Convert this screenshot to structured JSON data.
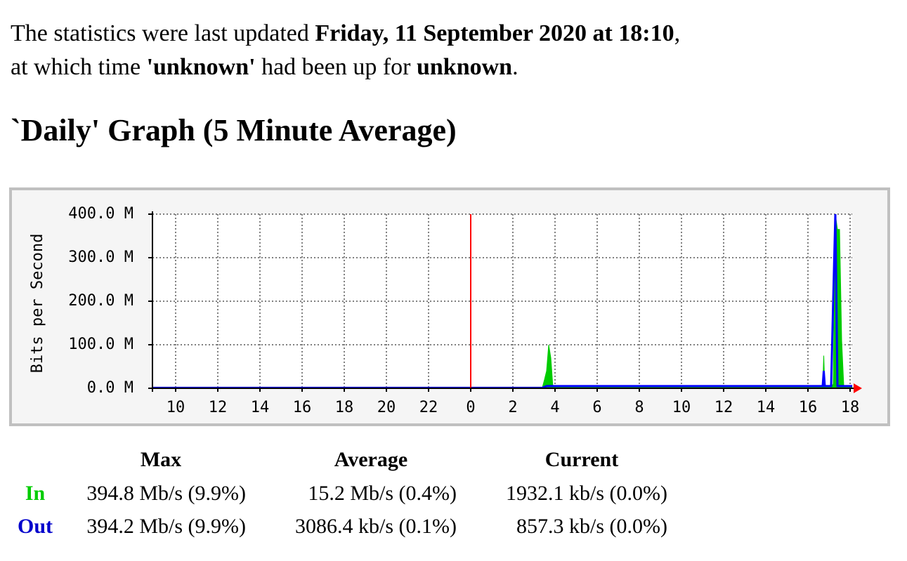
{
  "status": {
    "prefix": "The statistics were last updated",
    "updated": "Friday, 11 September 2020 at 18:10",
    "updated_suffix": ",",
    "host_prefix": "at which time",
    "host": "'unknown'",
    "uptime_prefix": "had been up for",
    "uptime": "unknown",
    "uptime_suffix": "."
  },
  "heading": "`Daily' Graph (5 Minute Average)",
  "chart_data": {
    "type": "line",
    "y_label": "Bits per Second",
    "x": [
      8.9,
      27.4,
      27.5,
      27.6,
      27.7,
      27.8,
      27.9,
      28.0,
      40.7,
      40.75,
      40.8,
      41.1,
      41.2,
      41.3,
      41.4,
      41.5,
      41.6,
      41.7,
      41.8,
      42.1
    ],
    "series": [
      {
        "name": "In",
        "color": "#00cc00",
        "fill": true,
        "values": [
          2,
          2,
          20,
          40,
          100,
          70,
          2,
          2,
          2,
          75,
          2,
          2,
          10,
          400,
          365,
          365,
          110,
          5,
          2,
          2
        ]
      },
      {
        "name": "Out",
        "color": "#0000ff",
        "fill": false,
        "values": [
          1,
          1,
          3,
          5,
          5,
          5,
          5,
          5,
          5,
          40,
          5,
          5,
          205,
          400,
          5,
          5,
          5,
          5,
          5,
          5
        ]
      }
    ],
    "xlim": [
      8.9,
      42.1
    ],
    "xticks": [
      10,
      12,
      14,
      16,
      18,
      20,
      22,
      {
        "value": 24,
        "label": "0"
      },
      {
        "value": 26,
        "label": "2"
      },
      {
        "value": 28,
        "label": "4"
      },
      {
        "value": 30,
        "label": "6"
      },
      {
        "value": 32,
        "label": "8"
      },
      {
        "value": 34,
        "label": "10"
      },
      {
        "value": 36,
        "label": "12"
      },
      {
        "value": 38,
        "label": "14"
      },
      {
        "value": 40,
        "label": "16"
      },
      {
        "value": 42,
        "label": "18"
      }
    ],
    "ylim": [
      0,
      400
    ],
    "yticks": [
      {
        "value": 0,
        "label": "0.0 M"
      },
      {
        "value": 100,
        "label": "100.0 M"
      },
      {
        "value": 200,
        "label": "200.0 M"
      },
      {
        "value": 300,
        "label": "300.0 M"
      },
      {
        "value": 400,
        "label": "400.0 M"
      }
    ],
    "grid": true,
    "day_marker": 24,
    "day_marker_color": "#ff0000"
  },
  "table": {
    "headers": [
      "Max",
      "Average",
      "Current"
    ],
    "rows": [
      {
        "label": "In",
        "color": "#00cc00",
        "cells": [
          "394.8 Mb/s (9.9%)",
          "15.2 Mb/s (0.4%)",
          "1932.1 kb/s (0.0%)"
        ]
      },
      {
        "label": "Out",
        "color": "#0000cc",
        "cells": [
          "394.2 Mb/s (9.9%)",
          "3086.4 kb/s (0.1%)",
          "857.3 kb/s (0.0%)"
        ]
      }
    ]
  }
}
